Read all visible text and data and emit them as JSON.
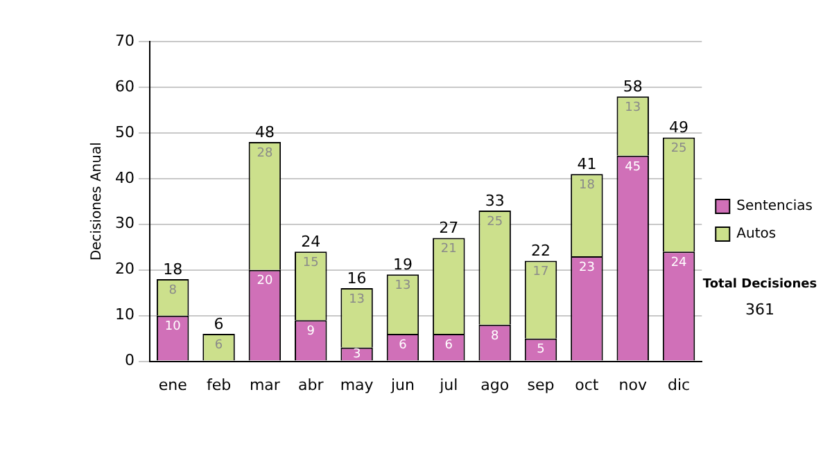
{
  "chart_data": {
    "type": "bar",
    "stacked": true,
    "ylabel": "Decisiones Anual",
    "categories": [
      "ene",
      "feb",
      "mar",
      "abr",
      "may",
      "jun",
      "jul",
      "ago",
      "sep",
      "oct",
      "nov",
      "dic"
    ],
    "series": [
      {
        "name": "Sentencias",
        "color": "#d070b8",
        "values": [
          10,
          0,
          20,
          9,
          3,
          6,
          6,
          8,
          5,
          23,
          45,
          24
        ],
        "value_labels": [
          "10",
          null,
          "20",
          "9",
          "3",
          "6",
          "6",
          "8",
          "5",
          "23",
          "45",
          "24"
        ]
      },
      {
        "name": "Autos",
        "color": "#cce08c",
        "values": [
          8,
          6,
          28,
          15,
          13,
          13,
          21,
          25,
          17,
          18,
          13,
          25
        ],
        "value_labels": [
          "8",
          "6",
          "28",
          "15",
          "13",
          "13",
          "21",
          "25",
          "17",
          "18",
          "13",
          "25"
        ]
      }
    ],
    "totals": [
      "18",
      "6",
      "48",
      "24",
      "16",
      "19",
      "27",
      "33",
      "22",
      "41",
      "58",
      "49"
    ],
    "ylim": [
      0,
      70
    ],
    "yticks": [
      0,
      10,
      20,
      30,
      40,
      50,
      60,
      70
    ],
    "grid": "y",
    "legend": "right",
    "annotations": [
      "Total Decisiones",
      "361"
    ]
  }
}
